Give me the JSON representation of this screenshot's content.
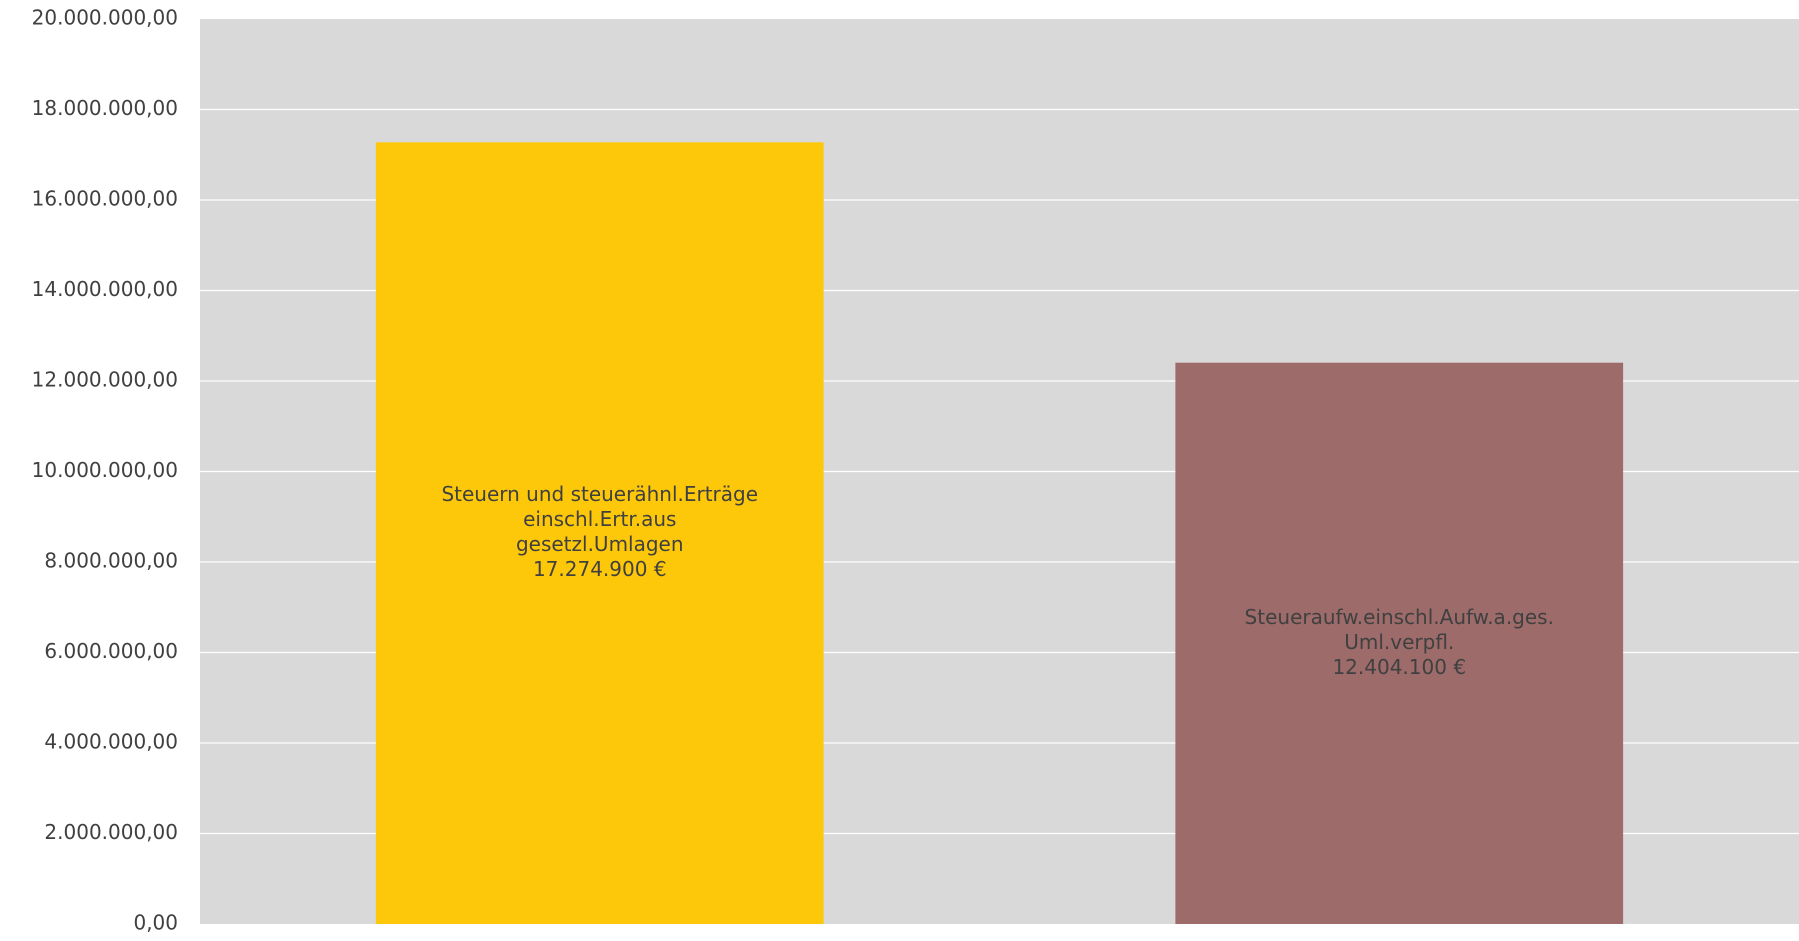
{
  "chart_data": {
    "type": "bar",
    "title": "",
    "xlabel": "",
    "ylabel": "",
    "ylim": [
      0,
      20000000
    ],
    "y_ticks": [
      {
        "value": 0,
        "label": "0,00"
      },
      {
        "value": 2000000,
        "label": "2.000.000,00"
      },
      {
        "value": 4000000,
        "label": "4.000.000,00"
      },
      {
        "value": 6000000,
        "label": "6.000.000,00"
      },
      {
        "value": 8000000,
        "label": "8.000.000,00"
      },
      {
        "value": 10000000,
        "label": "10.000.000,00"
      },
      {
        "value": 12000000,
        "label": "12.000.000,00"
      },
      {
        "value": 14000000,
        "label": "14.000.000,00"
      },
      {
        "value": 16000000,
        "label": "16.000.000,00"
      },
      {
        "value": 18000000,
        "label": "18.000.000,00"
      },
      {
        "value": 20000000,
        "label": "20.000.000,00"
      }
    ],
    "grid": true,
    "legend": "none",
    "bars": [
      {
        "category": "Steuern und steuerähnl.Erträge einschl.Ertr.aus gesetzl.Umlagen",
        "value": 17274900,
        "label_lines": [
          "Steuern und steuerähnl.Erträge",
          "einschl.Ertr.aus",
          "gesetzl.Umlagen",
          "17.274.900 €"
        ],
        "color": "#FDC80A"
      },
      {
        "category": "Steueraufw.einschl.Aufw.a.ges. Uml.verpfl.",
        "value": 12404100,
        "label_lines": [
          "Steueraufw.einschl.Aufw.a.ges.",
          "Uml.verpfl.",
          "12.404.100 €"
        ],
        "color": "#9C6B6A"
      }
    ],
    "colors": {
      "plot_background": "#D9D9D9",
      "gridline": "#FFFFFF",
      "tick_label": "#404040",
      "bar_label": "#404040"
    }
  }
}
